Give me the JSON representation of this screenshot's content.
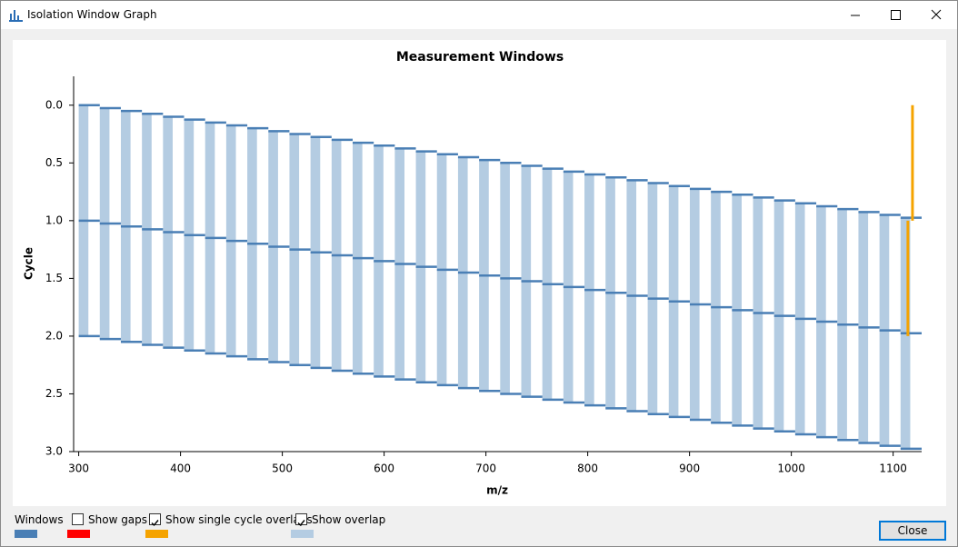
{
  "window": {
    "title": "Isolation Window Graph"
  },
  "chart_data": {
    "type": "window-steps",
    "title": "Measurement Windows",
    "x_label": "m/z",
    "y_label": "Cycle",
    "xlim": [
      295,
      1128
    ],
    "ylim": [
      -0.25,
      3
    ],
    "y_inverted": true,
    "xticks": [
      300,
      400,
      500,
      600,
      700,
      800,
      900,
      1000,
      1100
    ],
    "yticks": [
      {
        "value": 0,
        "label": "0.0"
      },
      0.5,
      {
        "value": 1,
        "label": "1.0"
      },
      1.5,
      {
        "value": 2,
        "label": "2.0"
      },
      2.5,
      {
        "value": 3,
        "label": "3.0"
      }
    ],
    "window_color": "#4a7fb5",
    "overlap_color": "#b4cce2",
    "single_overlap_color": "#f5a300",
    "window_edges": [
      300,
      320.7,
      341.4,
      362.1,
      382.8,
      403.5,
      424.2,
      444.9,
      465.6,
      486.3,
      507,
      527.7,
      548.4,
      569.1,
      589.8,
      610.5,
      631.2,
      651.9,
      672.6,
      693.3,
      714,
      734.7,
      755.4,
      776.1,
      796.8,
      817.5,
      838.2,
      858.9,
      879.6,
      900.3,
      921,
      941.7,
      962.4,
      983.1,
      1003.8,
      1024.5,
      1045.2,
      1065.9,
      1086.6,
      1107.3,
      1128
    ],
    "window_times": [
      0,
      0.025,
      0.05,
      0.075,
      0.1,
      0.125,
      0.15,
      0.175,
      0.2,
      0.225,
      0.25,
      0.275,
      0.3,
      0.325,
      0.35,
      0.375,
      0.4,
      0.425,
      0.45,
      0.475,
      0.5,
      0.525,
      0.55,
      0.575,
      0.6,
      0.625,
      0.65,
      0.675,
      0.7,
      0.725,
      0.75,
      0.775,
      0.8,
      0.825,
      0.85,
      0.875,
      0.9,
      0.925,
      0.95,
      0.975
    ],
    "cycle_starts": [
      0,
      1,
      2
    ],
    "overlap_width": 9.5,
    "single_cycle_overlaps": [
      {
        "x": 1119,
        "from": 0,
        "to": 1
      },
      {
        "x": 1114.5,
        "from": 1,
        "to": 2
      }
    ]
  },
  "legend": [
    {
      "label": "Windows",
      "color": "#4a7fb5"
    },
    {
      "label": "Show gaps",
      "checked": false,
      "color": "#ff0000"
    },
    {
      "label": "Show single cycle overlaps",
      "checked": true,
      "color": "#f5a300"
    },
    {
      "label": "Show overlap",
      "checked": true,
      "color": "#b4cce2"
    }
  ],
  "close_button": {
    "label": "Close"
  }
}
